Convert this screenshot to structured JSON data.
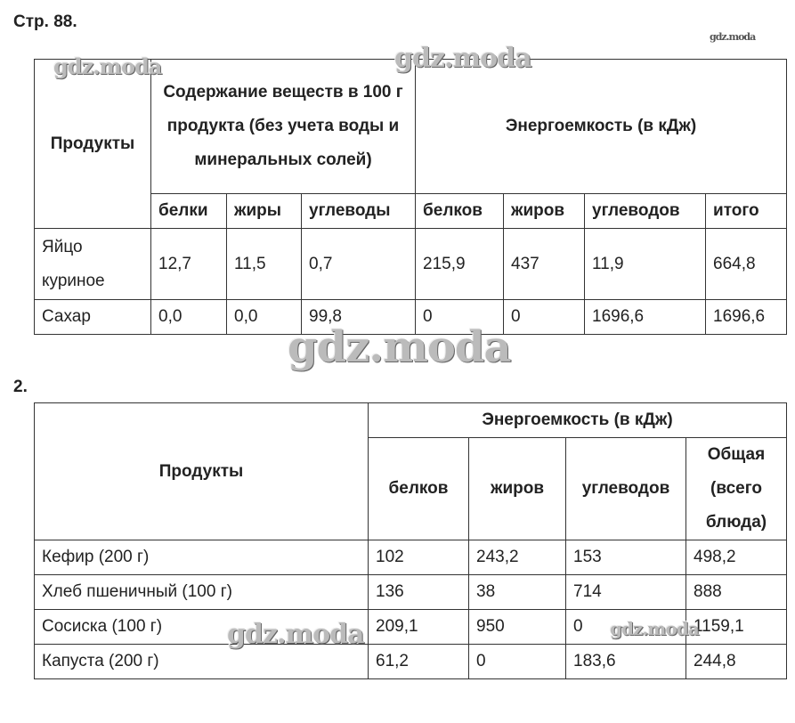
{
  "page_header": "Стр. 88.",
  "section2_label": "2.",
  "watermark": "gdz.moda",
  "table1": {
    "products_header": "Продукты",
    "content_header": "Содержание веществ в 100 г продукта (без учета воды и минеральных солей)",
    "energy_header": "Энергоемкость (в кДж)",
    "subheaders": [
      "белки",
      "жиры",
      "углеводы",
      "белков",
      "жиров",
      "углеводов",
      "итого"
    ],
    "rows": [
      {
        "product": "Яйцо куриное",
        "values": [
          "12,7",
          "11,5",
          "0,7",
          "215,9",
          "437",
          "11,9",
          "664,8"
        ]
      },
      {
        "product": "Сахар",
        "values": [
          "0,0",
          "0,0",
          "99,8",
          "0",
          "0",
          "1696,6",
          "1696,6"
        ]
      }
    ]
  },
  "table2": {
    "products_header": "Продукты",
    "energy_header": "Энергоемкость (в кДж)",
    "subheaders": [
      "белков",
      "жиров",
      "углеводов",
      "Общая (всего блюда)"
    ],
    "rows": [
      {
        "product": "Кефир (200 г)",
        "values": [
          "102",
          "243,2",
          "153",
          "498,2"
        ]
      },
      {
        "product": "Хлеб пшеничный (100 г)",
        "values": [
          "136",
          "38",
          "714",
          "888"
        ]
      },
      {
        "product": "Сосиска (100 г)",
        "values": [
          "209,1",
          "950",
          "0",
          "1159,1"
        ]
      },
      {
        "product": "Капуста (200 г)",
        "values": [
          "61,2",
          "0",
          "183,6",
          "244,8"
        ]
      }
    ]
  }
}
